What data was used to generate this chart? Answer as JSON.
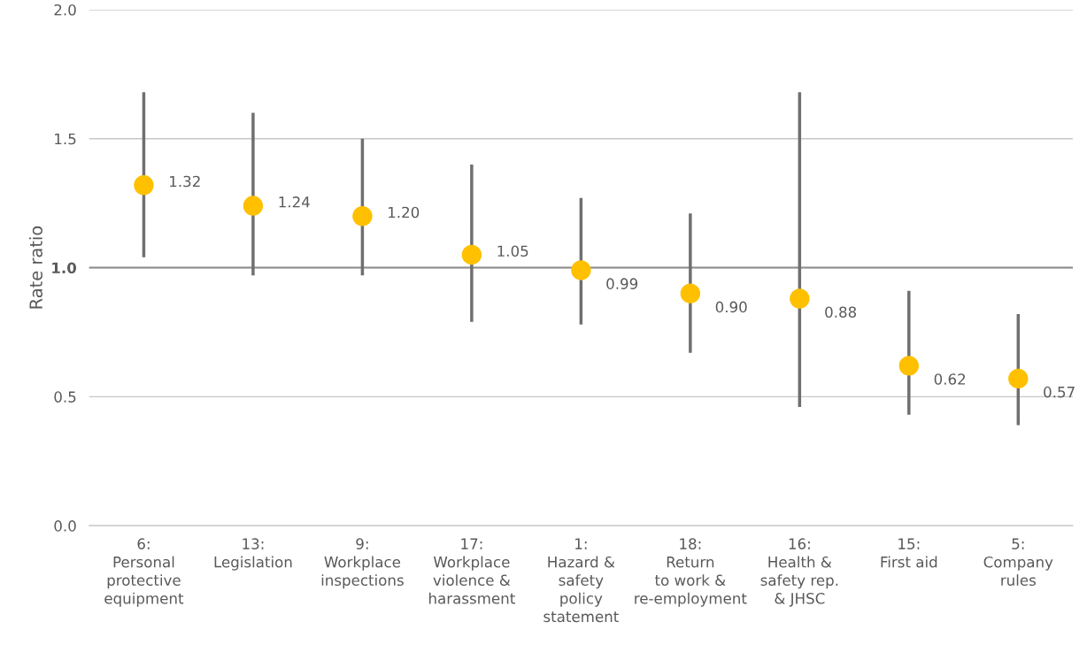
{
  "chart_data": {
    "type": "scatter",
    "ylabel": "Rate ratio",
    "categories": [
      "6:\nPersonal\nprotective\nequipment",
      "13:\nLegislation",
      "9:\nWorkplace\ninspections",
      "17:\nWorkplace\nviolence &\nharassment",
      "1:\nHazard &\nsafety\npolicy\nstatement",
      "18:\nReturn\nto work &\nre-employment",
      "16:\nHealth &\nsafety rep.\n& JHSC",
      "15:\nFirst aid",
      "5:\nCompany\nrules"
    ],
    "series": [
      {
        "color": "#ffc000",
        "values": [
          1.32,
          1.24,
          1.2,
          1.05,
          0.99,
          0.9,
          0.88,
          0.62,
          0.57
        ],
        "value_labels": [
          "1.32",
          "1.24",
          "1.20",
          "1.05",
          "0.99",
          "0.90",
          "0.88",
          "0.62",
          "0.57"
        ],
        "errors": [
          [
            1.04,
            1.68
          ],
          [
            0.97,
            1.6
          ],
          [
            0.97,
            1.5
          ],
          [
            0.79,
            1.4
          ],
          [
            0.78,
            1.27
          ],
          [
            0.67,
            1.21
          ],
          [
            0.46,
            1.68
          ],
          [
            0.43,
            0.91
          ],
          [
            0.39,
            0.82
          ]
        ]
      }
    ],
    "ylim": [
      0,
      2.0
    ],
    "yticks": [
      {
        "value": 0,
        "label": "0.0"
      },
      {
        "value": 0.5,
        "label": "0.5"
      },
      {
        "value": 1.0,
        "label": "1.0"
      },
      {
        "value": 1.5,
        "label": "1.5"
      },
      {
        "value": 2.0,
        "label": "2.0"
      }
    ],
    "ref_lines": [
      {
        "axis": "y",
        "value": 1.0,
        "color": "#8c8c8c"
      }
    ],
    "grid": "y",
    "marker": "circle"
  }
}
